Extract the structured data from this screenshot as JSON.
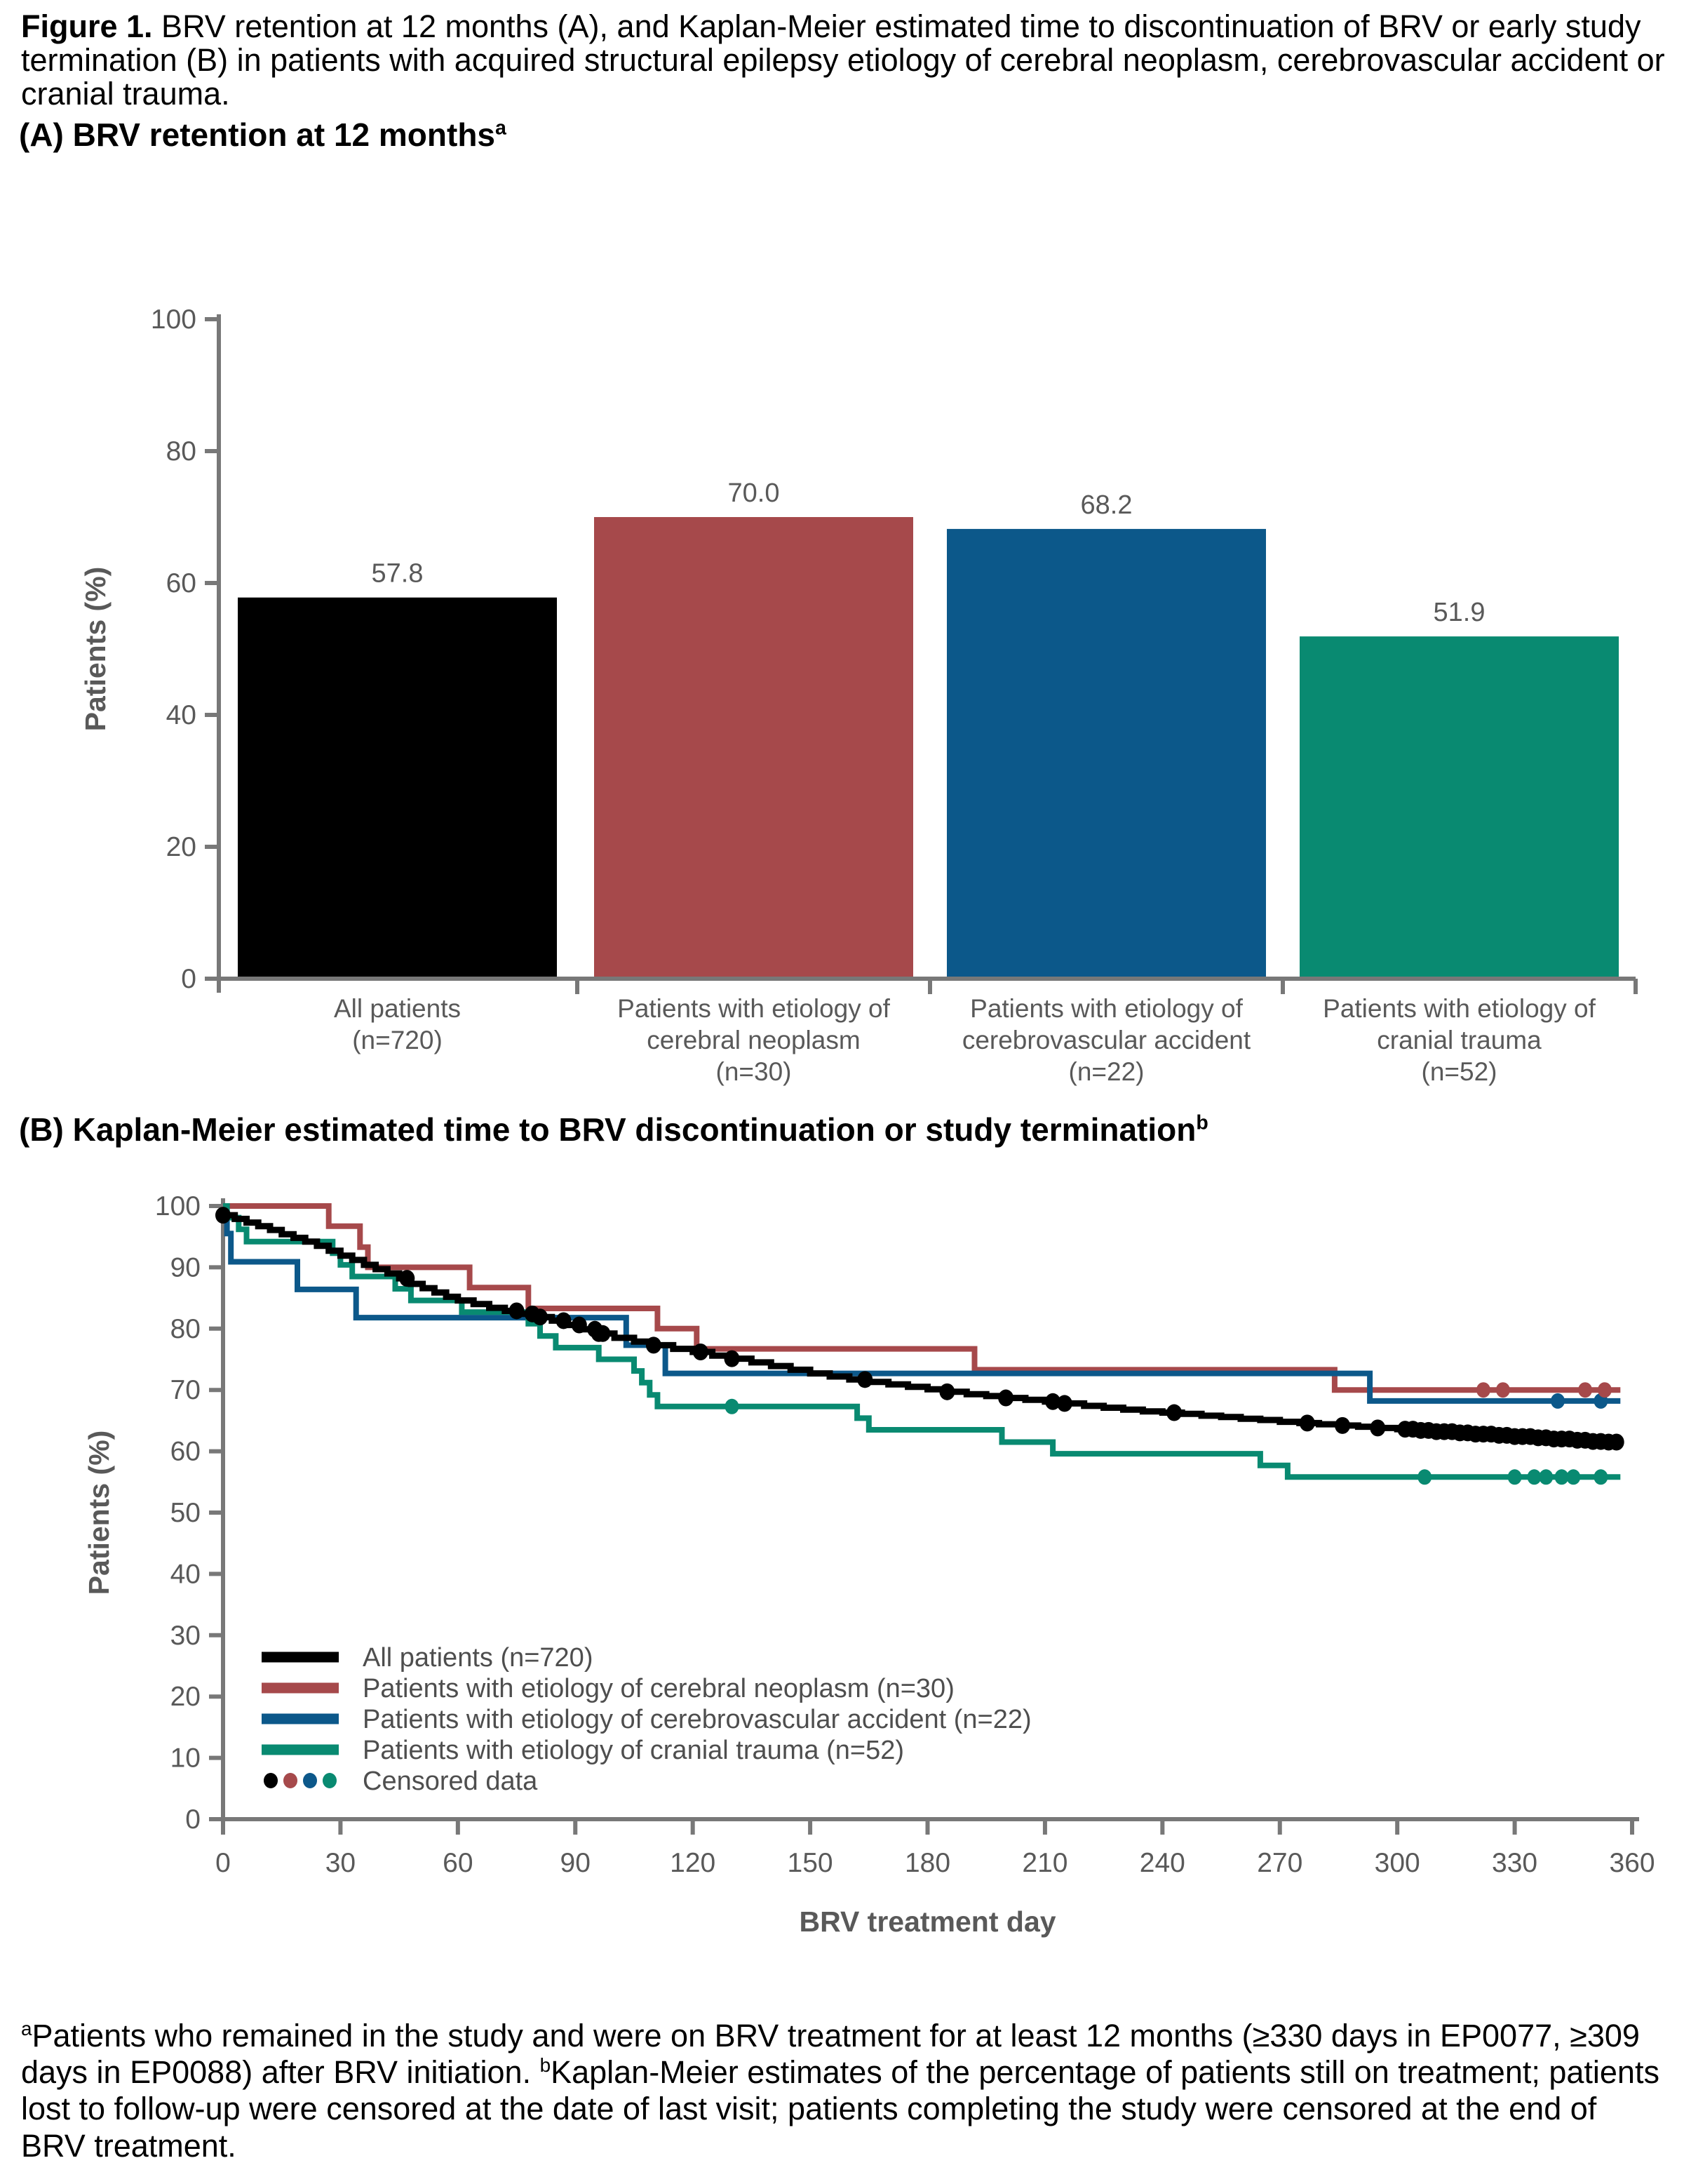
{
  "caption": {
    "bold": "Figure 1.",
    "text": " BRV retention at 12 months (A), and Kaplan-Meier estimated time to discontinuation of BRV or early study termination (B) in patients with acquired structural epilepsy etiology of cerebral neoplasm, cerebrovascular accident or cranial trauma."
  },
  "panelA": {
    "heading": "(A) BRV retention at 12 months",
    "heading_sup": "a",
    "chart_data": {
      "type": "bar",
      "title": "BRV retention at 12 months",
      "ylabel": "Patients (%)",
      "ylim": [
        0,
        100
      ],
      "yticks": [
        0,
        20,
        40,
        60,
        80,
        100
      ],
      "categories": [
        "All patients (n=720)",
        "Patients with etiology of cerebral neoplasm (n=30)",
        "Patients with etiology of cerebrovascular accident (n=22)",
        "Patients with etiology of cranial trauma (n=52)"
      ],
      "categories_lines": [
        [
          "All patients",
          "(n=720)"
        ],
        [
          "Patients with etiology of",
          "cerebral neoplasm",
          "(n=30)"
        ],
        [
          "Patients with etiology of",
          "cerebrovascular accident",
          "(n=22)"
        ],
        [
          "Patients with etiology of",
          "cranial trauma",
          "(n=52)"
        ]
      ],
      "values": [
        57.8,
        70.0,
        68.2,
        51.9
      ],
      "value_labels": [
        "57.8",
        "70.0",
        "68.2",
        "51.9"
      ],
      "bar_colors": [
        "#000000",
        "#A6494B",
        "#0C588A",
        "#098A71"
      ]
    }
  },
  "panelB": {
    "heading": "(B) Kaplan-Meier estimated time to BRV discontinuation or study termination",
    "heading_sup": "b",
    "chart_data": {
      "type": "line",
      "subtype": "kaplan-meier-step",
      "ylabel": "Patients (%)",
      "xlabel": "BRV treatment day",
      "xlim": [
        0,
        360
      ],
      "ylim": [
        0,
        100
      ],
      "xticks": [
        0,
        30,
        60,
        90,
        120,
        150,
        180,
        210,
        240,
        270,
        300,
        330,
        360
      ],
      "yticks": [
        0,
        10,
        20,
        30,
        40,
        50,
        60,
        70,
        80,
        90,
        100
      ],
      "legend_censored_label": "Censored data",
      "series": [
        {
          "name": "All patients (n=720)",
          "color": "#000000",
          "points": [
            [
              0,
              98.5
            ],
            [
              3,
              97.9
            ],
            [
              6,
              97.3
            ],
            [
              9,
              96.7
            ],
            [
              12,
              96.1
            ],
            [
              15,
              95.4
            ],
            [
              18,
              94.8
            ],
            [
              21,
              94.2
            ],
            [
              24,
              93.5
            ],
            [
              27,
              92.7
            ],
            [
              30,
              91.9
            ],
            [
              33,
              91.2
            ],
            [
              36,
              90.4
            ],
            [
              39,
              89.7
            ],
            [
              42,
              89.0
            ],
            [
              45,
              88.2
            ],
            [
              48,
              87.3
            ],
            [
              51,
              86.6
            ],
            [
              54,
              85.9
            ],
            [
              57,
              85.2
            ],
            [
              60,
              84.6
            ],
            [
              64,
              84.0
            ],
            [
              68,
              83.4
            ],
            [
              72,
              82.9
            ],
            [
              76,
              82.4
            ],
            [
              80,
              81.9
            ],
            [
              84,
              81.3
            ],
            [
              88,
              80.6
            ],
            [
              92,
              79.9
            ],
            [
              96,
              79.2
            ],
            [
              100,
              78.5
            ],
            [
              105,
              77.9
            ],
            [
              110,
              77.3
            ],
            [
              115,
              76.7
            ],
            [
              120,
              76.2
            ],
            [
              125,
              75.6
            ],
            [
              130,
              75.1
            ],
            [
              135,
              74.5
            ],
            [
              140,
              73.9
            ],
            [
              145,
              73.3
            ],
            [
              150,
              72.7
            ],
            [
              155,
              72.2
            ],
            [
              160,
              71.7
            ],
            [
              165,
              71.3
            ],
            [
              170,
              70.9
            ],
            [
              175,
              70.5
            ],
            [
              180,
              70.1
            ],
            [
              185,
              69.7
            ],
            [
              190,
              69.3
            ],
            [
              195,
              69.0
            ],
            [
              200,
              68.7
            ],
            [
              205,
              68.4
            ],
            [
              210,
              68.1
            ],
            [
              215,
              67.8
            ],
            [
              220,
              67.4
            ],
            [
              225,
              67.1
            ],
            [
              230,
              66.8
            ],
            [
              235,
              66.5
            ],
            [
              240,
              66.3
            ],
            [
              245,
              66.1
            ],
            [
              250,
              65.8
            ],
            [
              255,
              65.6
            ],
            [
              260,
              65.3
            ],
            [
              265,
              65.1
            ],
            [
              270,
              64.8
            ],
            [
              275,
              64.6
            ],
            [
              280,
              64.4
            ],
            [
              285,
              64.2
            ],
            [
              290,
              64.0
            ],
            [
              295,
              63.8
            ],
            [
              300,
              63.6
            ],
            [
              305,
              63.4
            ],
            [
              310,
              63.2
            ],
            [
              315,
              63.0
            ],
            [
              320,
              62.8
            ],
            [
              325,
              62.6
            ],
            [
              330,
              62.4
            ],
            [
              335,
              62.2
            ],
            [
              340,
              62.0
            ],
            [
              345,
              61.8
            ],
            [
              350,
              61.6
            ],
            [
              353,
              61.5
            ],
            [
              357,
              61.4
            ]
          ],
          "censored_days": [
            0,
            47,
            75,
            79,
            81,
            87,
            91,
            95,
            96,
            97,
            110,
            122,
            130,
            164,
            185,
            200,
            212,
            215,
            243,
            277,
            286,
            295,
            302,
            304,
            306,
            308,
            310,
            312,
            314,
            316,
            318,
            320,
            322,
            324,
            326,
            328,
            330,
            332,
            334,
            336,
            338,
            340,
            342,
            344,
            346,
            348,
            350,
            352,
            354,
            356
          ]
        },
        {
          "name": "Patients with etiology of cerebral neoplasm (n=30)",
          "color": "#A6494B",
          "points": [
            [
              0,
              100
            ],
            [
              27,
              96.7
            ],
            [
              35,
              93.3
            ],
            [
              37,
              90.0
            ],
            [
              63,
              86.7
            ],
            [
              78,
              83.3
            ],
            [
              111,
              80.0
            ],
            [
              121,
              76.7
            ],
            [
              192,
              73.3
            ],
            [
              284,
              70.0
            ],
            [
              357,
              70.0
            ]
          ],
          "censored_days": [
            322,
            327,
            348,
            353
          ]
        },
        {
          "name": "Patients with etiology of cerebrovascular accident (n=22)",
          "color": "#0C588A",
          "points": [
            [
              0,
              100
            ],
            [
              1,
              95.5
            ],
            [
              2,
              90.9
            ],
            [
              19,
              86.4
            ],
            [
              34,
              81.8
            ],
            [
              103,
              77.3
            ],
            [
              113,
              72.7
            ],
            [
              293,
              68.2
            ],
            [
              357,
              68.2
            ]
          ],
          "censored_days": [
            341,
            352
          ]
        },
        {
          "name": "Patients with etiology of cranial trauma (n=52)",
          "color": "#098A71",
          "points": [
            [
              0,
              100
            ],
            [
              1,
              98.1
            ],
            [
              4,
              96.2
            ],
            [
              6,
              94.2
            ],
            [
              28,
              92.3
            ],
            [
              30,
              90.4
            ],
            [
              33,
              88.5
            ],
            [
              44,
              86.5
            ],
            [
              48,
              84.6
            ],
            [
              61,
              82.7
            ],
            [
              78,
              80.8
            ],
            [
              81,
              78.8
            ],
            [
              85,
              76.9
            ],
            [
              96,
              75.0
            ],
            [
              105,
              73.1
            ],
            [
              107,
              71.2
            ],
            [
              109,
              69.2
            ],
            [
              111,
              67.3
            ],
            [
              162,
              65.4
            ],
            [
              165,
              63.5
            ],
            [
              199,
              61.5
            ],
            [
              212,
              59.6
            ],
            [
              265,
              57.7
            ],
            [
              272,
              55.8
            ],
            [
              357,
              55.8
            ]
          ],
          "censored_days": [
            130,
            307,
            330,
            335,
            338,
            342,
            345,
            352
          ]
        }
      ]
    }
  },
  "footnote": {
    "sup_a": "a",
    "text_a": "Patients who remained in the study and were on BRV treatment for at least 12 months (≥330 days in EP0077, ≥309 days in EP0088) after BRV initiation. ",
    "sup_b": "b",
    "text_b": "Kaplan-Meier estimates of the percentage of patients still on treatment; patients lost to follow-up were censored at the date of last visit; patients completing the study were censored at the end of BRV treatment."
  },
  "style_colors": {
    "axis_gray": "#787878",
    "label_gray": "#595959",
    "legend_text": "#4e4e4e"
  }
}
